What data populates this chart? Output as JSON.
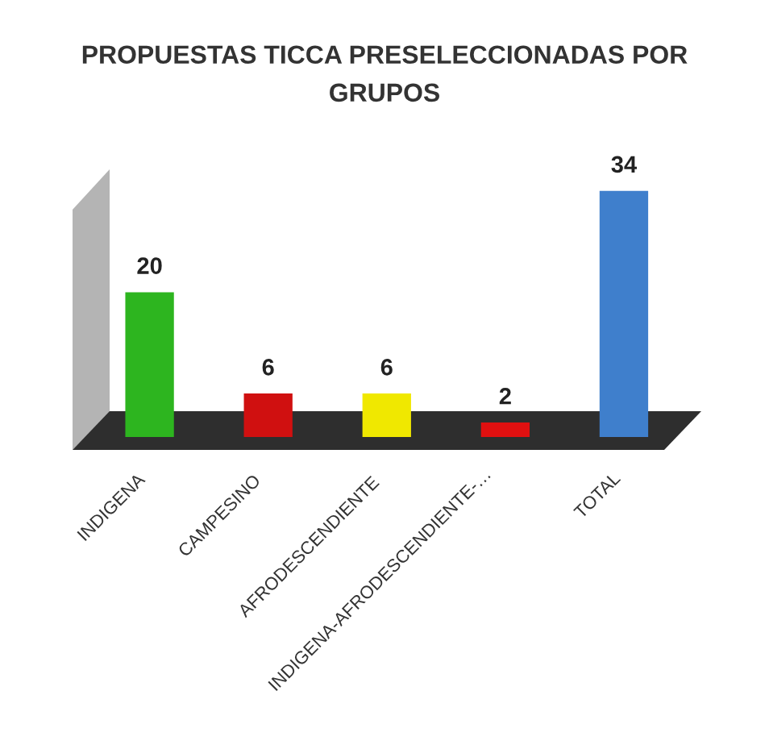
{
  "chart_data": {
    "type": "bar",
    "title": "PROPUESTAS TICCA PRESELECCIONADAS POR GRUPOS",
    "categories": [
      "INDIGENA",
      "CAMPESINO",
      "AFRODESCENDIENTE",
      "INDIGENA-AFRODESCENDIENTE-…",
      "TOTAL"
    ],
    "values": [
      20,
      6,
      6,
      2,
      34
    ],
    "colors": [
      "#2db51f",
      "#d01010",
      "#f0e800",
      "#e01010",
      "#3f7fcc"
    ],
    "data_labels": true,
    "tick_labels": "x",
    "grid": false,
    "legend": false
  }
}
